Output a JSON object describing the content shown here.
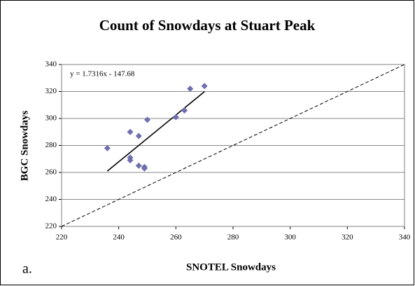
{
  "chart_data": {
    "type": "scatter",
    "title": "Count of Snowdays at Stuart Peak",
    "x_label": "SNOTEL Snowdays",
    "y_label": "BGC Snowdays",
    "panel_label": "a.",
    "x": [
      236,
      244,
      244,
      244,
      247,
      247,
      249,
      249,
      250,
      260,
      263,
      265,
      270
    ],
    "values": [
      278,
      290,
      271,
      269,
      287,
      265,
      264,
      263,
      299,
      301,
      306,
      322,
      324
    ],
    "color": "#6f6fae",
    "xlim": [
      220,
      340
    ],
    "ylim": [
      220,
      340
    ],
    "xticks": [
      220,
      240,
      260,
      280,
      300,
      320,
      340
    ],
    "yticks": [
      220,
      240,
      260,
      280,
      300,
      320,
      340
    ],
    "grid": true,
    "trendline": {
      "label": "y = 1.7316x - 147.68",
      "slope": 1.7316,
      "intercept": -147.68
    }
  }
}
